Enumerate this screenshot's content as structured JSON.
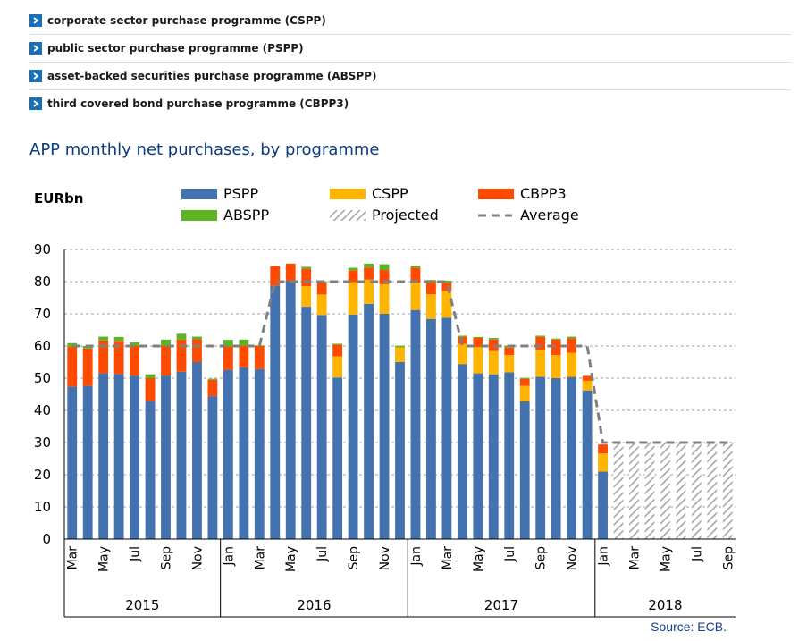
{
  "programme_list": [
    {
      "label": "corporate sector purchase programme (CSPP)",
      "icon": "chevron-right-icon"
    },
    {
      "label": "public sector purchase programme (PSPP)",
      "icon": "chevron-right-icon"
    },
    {
      "label": "asset-backed securities purchase programme (ABSPP)",
      "icon": "chevron-right-icon"
    },
    {
      "label": "third covered bond purchase programme (CBPP3)",
      "icon": "chevron-right-icon"
    }
  ],
  "source": "Source: ECB.",
  "chart_data": {
    "type": "bar",
    "stacked": true,
    "title": "APP monthly net purchases, by programme",
    "ylabel": "EURbn",
    "ylim": [
      0,
      90
    ],
    "yticks": [
      0,
      10,
      20,
      30,
      40,
      50,
      60,
      70,
      80,
      90
    ],
    "grid": true,
    "legend_position": "top",
    "x_tick_labels": [
      "Mar",
      "",
      "May",
      "",
      "Jul",
      "",
      "Sep",
      "",
      "Nov",
      "",
      "Jan",
      "",
      "Mar",
      "",
      "May",
      "",
      "Jul",
      "",
      "Sep",
      "",
      "Nov",
      "",
      "Jan",
      "",
      "Mar",
      "",
      "May",
      "",
      "Jul",
      "",
      "Sep",
      "",
      "Nov",
      "",
      "Jan",
      "",
      "Mar",
      "",
      "May",
      "",
      "Jul",
      "",
      "Sep"
    ],
    "year_groups": [
      {
        "label": "2015",
        "months": 10
      },
      {
        "label": "2016",
        "months": 12
      },
      {
        "label": "2017",
        "months": 12
      },
      {
        "label": "2018",
        "months": 9
      }
    ],
    "series": [
      {
        "name": "PSPP",
        "color": "#4472ae",
        "values": [
          47.4,
          47.6,
          51.5,
          51.3,
          50.8,
          43,
          50.8,
          52,
          55,
          44.4,
          52.6,
          53.4,
          52.8,
          78.8,
          80.3,
          72.2,
          69.6,
          50.2,
          69.8,
          73.1,
          70,
          55,
          71.2,
          68.4,
          68.8,
          54.4,
          51.5,
          51.2,
          51.8,
          42.8,
          50.4,
          50,
          50.4,
          46.2,
          21,
          null,
          null,
          null,
          null,
          null,
          null,
          null,
          null
        ]
      },
      {
        "name": "CSPP",
        "color": "#ffb400",
        "values": [
          0,
          0,
          0,
          0,
          0,
          0,
          0,
          0,
          0,
          0,
          0,
          0,
          0,
          0,
          0,
          6.4,
          6.4,
          6.6,
          10,
          7.5,
          9.2,
          4.6,
          8.5,
          7.7,
          8.3,
          6.3,
          8.2,
          7.2,
          5.4,
          4.8,
          8.3,
          7.2,
          7.5,
          3,
          5.6,
          null,
          null,
          null,
          null,
          null,
          null,
          null,
          null
        ]
      },
      {
        "name": "CBPP3",
        "color": "#ff4b00",
        "values": [
          12.5,
          11.6,
          10.2,
          10.3,
          9.3,
          7,
          9.3,
          10,
          7.1,
          5.1,
          7.3,
          6.8,
          7.2,
          6,
          5.3,
          5.4,
          3.7,
          3.6,
          3.7,
          3.8,
          4.4,
          0,
          4.7,
          4,
          2.6,
          2.1,
          2.8,
          3.6,
          2.3,
          2.2,
          4.1,
          4.8,
          4.5,
          1.5,
          2.8,
          null,
          null,
          null,
          null,
          null,
          null,
          null,
          null
        ]
      },
      {
        "name": "ABSPP",
        "color": "#5db422",
        "values": [
          1,
          0.8,
          1.2,
          1.2,
          1,
          1.2,
          1.9,
          1.8,
          0.8,
          0.3,
          2,
          1.8,
          0.2,
          0,
          0,
          0.6,
          0.4,
          0.3,
          0.8,
          1.2,
          1.8,
          0.5,
          0.6,
          0.4,
          0.6,
          0.4,
          0.3,
          0.5,
          0.6,
          0.3,
          0.4,
          0.3,
          0.5,
          0,
          0,
          null,
          null,
          null,
          null,
          null,
          null,
          null,
          null
        ]
      },
      {
        "name": "Projected",
        "color": "#a6a6a6",
        "pattern": "hatched",
        "values": [
          null,
          null,
          null,
          null,
          null,
          null,
          null,
          null,
          null,
          null,
          null,
          null,
          null,
          null,
          null,
          null,
          null,
          null,
          null,
          null,
          null,
          null,
          null,
          null,
          null,
          null,
          null,
          null,
          null,
          null,
          null,
          null,
          null,
          null,
          null,
          30,
          30,
          30,
          30,
          30,
          30,
          30,
          30
        ]
      },
      {
        "name": "Average",
        "type": "line",
        "style": "dashed",
        "color": "#808080",
        "values": [
          60,
          60,
          60,
          60,
          60,
          60,
          60,
          60,
          60,
          60,
          60,
          60,
          60,
          80,
          80,
          80,
          80,
          80,
          80,
          80,
          80,
          80,
          80,
          80,
          80,
          60,
          60,
          60,
          60,
          60,
          60,
          60,
          60,
          60,
          30,
          30,
          30,
          30,
          30,
          30,
          30,
          30,
          30
        ]
      }
    ]
  }
}
